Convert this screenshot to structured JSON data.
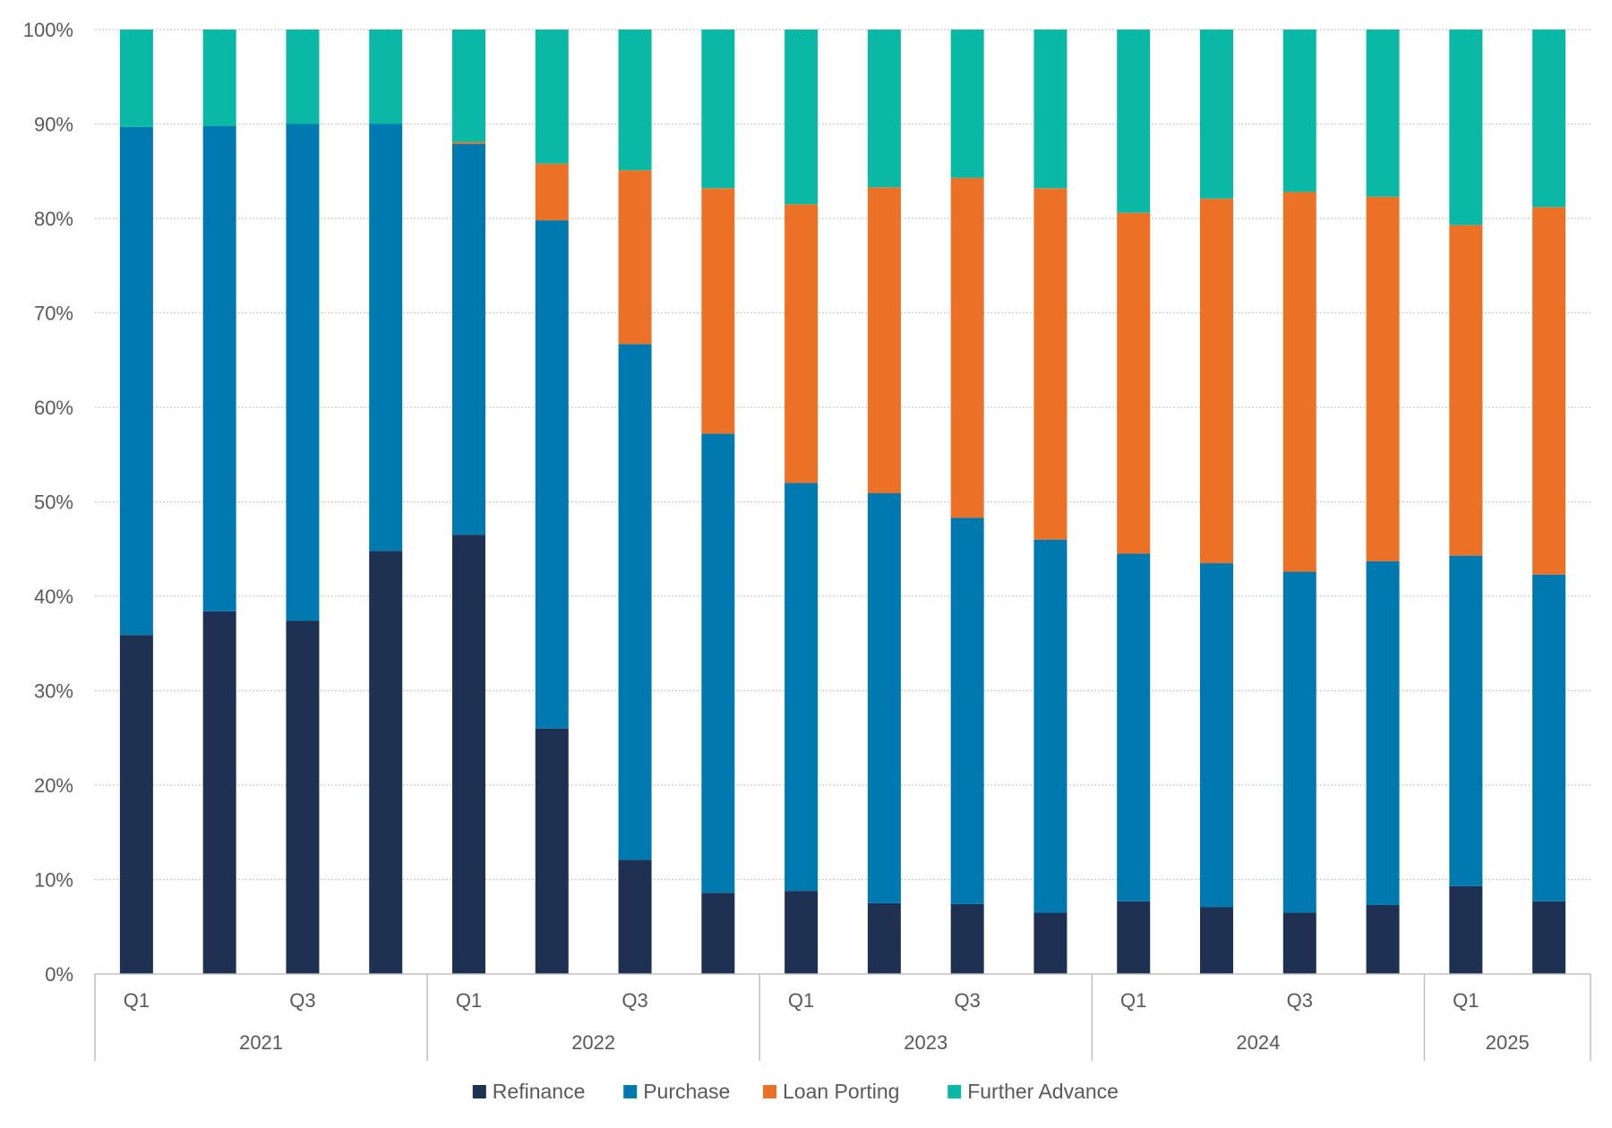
{
  "chart_data": {
    "type": "bar",
    "stacked": true,
    "percent": true,
    "title": "",
    "xlabel": "",
    "ylabel": "",
    "ylim": [
      0,
      100
    ],
    "yticks": [
      "0%",
      "10%",
      "20%",
      "30%",
      "40%",
      "50%",
      "60%",
      "70%",
      "80%",
      "90%",
      "100%"
    ],
    "grid": true,
    "legend_position": "bottom",
    "categories": [
      "2021 Q1",
      "2021 Q2",
      "2021 Q3",
      "2021 Q4",
      "2022 Q1",
      "2022 Q2",
      "2022 Q3",
      "2022 Q4",
      "2023 Q1",
      "2023 Q2",
      "2023 Q3",
      "2023 Q4",
      "2024 Q1",
      "2024 Q2",
      "2024 Q3",
      "2024 Q4",
      "2025 Q1",
      "2025 Q2"
    ],
    "quarter_labels": [
      "Q1",
      "",
      "Q3",
      "",
      "Q1",
      "",
      "Q3",
      "",
      "Q1",
      "",
      "Q3",
      "",
      "Q1",
      "",
      "Q3",
      "",
      "Q1",
      ""
    ],
    "year_groups": [
      {
        "label": "2021",
        "count": 4
      },
      {
        "label": "2022",
        "count": 4
      },
      {
        "label": "2023",
        "count": 4
      },
      {
        "label": "2024",
        "count": 4
      },
      {
        "label": "2025",
        "count": 2
      }
    ],
    "series": [
      {
        "name": "Refinance",
        "color": "#1f3152",
        "values": [
          35.9,
          38.4,
          37.4,
          44.8,
          46.5,
          26.0,
          12.1,
          8.6,
          8.8,
          7.5,
          7.4,
          6.5,
          7.7,
          7.1,
          6.5,
          7.3,
          9.3,
          7.7
        ]
      },
      {
        "name": "Purchase",
        "color": "#0079b0",
        "values": [
          53.8,
          51.4,
          52.6,
          45.2,
          41.4,
          53.8,
          54.6,
          48.6,
          43.2,
          43.4,
          40.9,
          39.5,
          36.8,
          36.4,
          36.1,
          36.4,
          35.0,
          34.6
        ]
      },
      {
        "name": "Loan Porting",
        "color": "#eb7127",
        "values": [
          0,
          0,
          0,
          0,
          0.2,
          6.0,
          18.4,
          26.0,
          29.5,
          32.4,
          36.0,
          37.2,
          36.1,
          38.6,
          40.2,
          38.6,
          35.0,
          38.9
        ]
      },
      {
        "name": "Further Advance",
        "color": "#09b9a6",
        "values": [
          10.3,
          10.2,
          10.0,
          10.0,
          11.9,
          14.2,
          14.9,
          16.8,
          18.5,
          16.7,
          15.7,
          16.8,
          19.4,
          17.9,
          17.2,
          17.7,
          20.7,
          18.8
        ]
      }
    ]
  }
}
